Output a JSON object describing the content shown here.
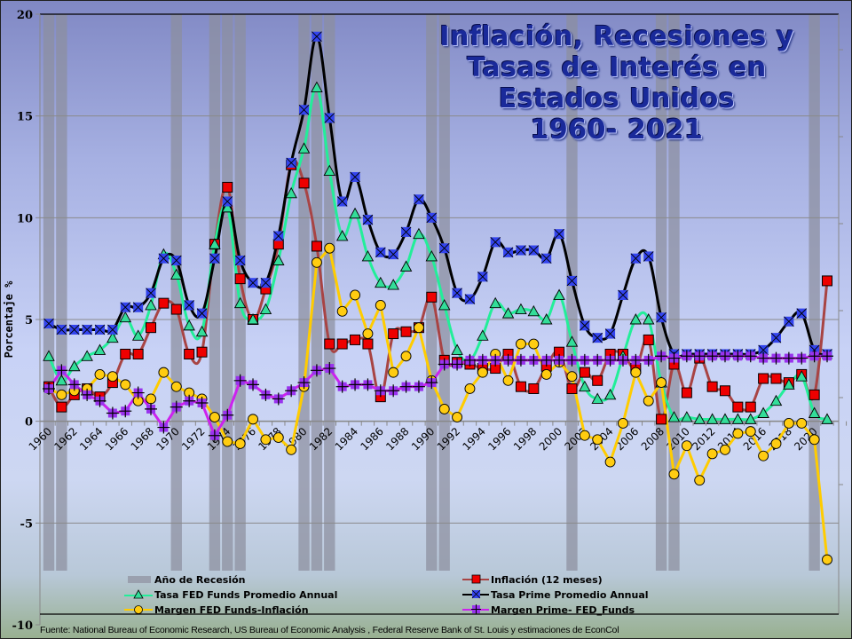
{
  "chart_data": {
    "type": "line",
    "title_lines": [
      "Inflación, Recesiones y",
      "Tasas de Interés en",
      "Estados Unidos",
      "1960- 2021"
    ],
    "xlabel": "",
    "ylabel": "Porcentaje %",
    "ylim": [
      -10,
      20
    ],
    "yticks": [
      "20",
      "15",
      "10",
      "5",
      "0",
      "-5",
      "-10"
    ],
    "ytick_values": [
      20,
      15,
      10,
      5,
      0,
      -5,
      -10
    ],
    "xlim": [
      1960,
      2021
    ],
    "xtick_labels": [
      "1960",
      "1962",
      "1964",
      "1966",
      "1968",
      "1970",
      "1972",
      "1974",
      "1976",
      "1978",
      "1980",
      "1982",
      "1984",
      "1986",
      "1988",
      "1990",
      "1992",
      "1994",
      "1996",
      "1998",
      "2000",
      "2002",
      "2004",
      "2006",
      "2008",
      "2010",
      "2012",
      "2014",
      "2016",
      "2018",
      "2020"
    ],
    "grid": true,
    "legend_placement": "bottom",
    "recession_years": [
      1960,
      1961,
      1970,
      1973,
      1974,
      1975,
      1980,
      1981,
      1982,
      1990,
      1991,
      2001,
      2008,
      2009,
      2020
    ],
    "recession_label": "Año de Recesión",
    "years_start": 1960,
    "series": [
      {
        "name": "Inflación (12 meses)",
        "key": "inflation",
        "line_color": "#a84444",
        "marker": "square",
        "marker_color": "#ee0000",
        "values": [
          1.7,
          0.7,
          1.3,
          1.6,
          1.2,
          1.9,
          3.3,
          3.3,
          4.6,
          5.8,
          5.5,
          3.3,
          3.4,
          8.7,
          11.5,
          7.0,
          5.0,
          6.5,
          8.7,
          12.6,
          11.7,
          8.6,
          3.8,
          3.8,
          4.0,
          3.8,
          1.2,
          4.3,
          4.4,
          4.6,
          6.1,
          3.0,
          2.9,
          2.8,
          2.6,
          2.6,
          3.3,
          1.7,
          1.6,
          2.7,
          3.4,
          1.6,
          2.4,
          2.0,
          3.3,
          3.3,
          2.6,
          4.0,
          0.1,
          2.8,
          1.4,
          3.1,
          1.7,
          1.5,
          0.7,
          0.7,
          2.1,
          2.1,
          1.9,
          2.3,
          1.3,
          6.9
        ]
      },
      {
        "name": "Tasa FED Funds Promedio Annual",
        "key": "fedfunds",
        "line_color": "#22ee99",
        "marker": "triangle",
        "marker_color": "#33dd99",
        "values": [
          3.2,
          2.0,
          2.7,
          3.2,
          3.5,
          4.1,
          5.1,
          4.2,
          5.7,
          8.2,
          7.2,
          4.7,
          4.4,
          8.7,
          10.5,
          5.8,
          5.0,
          5.5,
          7.9,
          11.2,
          13.4,
          16.4,
          12.3,
          9.1,
          10.2,
          8.1,
          6.8,
          6.7,
          7.6,
          9.2,
          8.1,
          5.7,
          3.5,
          3.0,
          4.2,
          5.8,
          5.3,
          5.5,
          5.4,
          5.0,
          6.2,
          3.9,
          1.7,
          1.1,
          1.3,
          3.2,
          5.0,
          5.0,
          1.9,
          0.2,
          0.2,
          0.1,
          0.1,
          0.1,
          0.1,
          0.1,
          0.4,
          1.0,
          1.8,
          2.2,
          0.4,
          0.1
        ]
      },
      {
        "name": "Tasa Prime Promedio Annual",
        "key": "prime",
        "line_color": "#000000",
        "marker": "xsquare",
        "marker_color": "#3344ee",
        "values": [
          4.8,
          4.5,
          4.5,
          4.5,
          4.5,
          4.5,
          5.6,
          5.6,
          6.3,
          8.0,
          7.9,
          5.7,
          5.3,
          8.0,
          10.8,
          7.9,
          6.8,
          6.8,
          9.1,
          12.7,
          15.3,
          18.9,
          14.9,
          10.8,
          12.0,
          9.9,
          8.3,
          8.2,
          9.3,
          10.9,
          10.0,
          8.5,
          6.3,
          6.0,
          7.1,
          8.8,
          8.3,
          8.4,
          8.4,
          8.0,
          9.2,
          6.9,
          4.7,
          4.1,
          4.3,
          6.2,
          8.0,
          8.1,
          5.1,
          3.3,
          3.3,
          3.3,
          3.3,
          3.3,
          3.3,
          3.3,
          3.5,
          4.1,
          4.9,
          5.3,
          3.5,
          3.3
        ]
      },
      {
        "name": "Margen FED Funds-Inflación",
        "key": "margin_fed",
        "line_color": "#ffcc00",
        "marker": "circle",
        "marker_color": "#ffcc11",
        "values": [
          1.6,
          1.3,
          1.5,
          1.6,
          2.3,
          2.2,
          1.8,
          1.0,
          1.1,
          2.4,
          1.7,
          1.4,
          1.1,
          0.2,
          -1.0,
          -1.1,
          0.1,
          -0.9,
          -0.8,
          -1.4,
          1.7,
          7.8,
          8.5,
          5.4,
          6.2,
          4.3,
          5.7,
          2.4,
          3.2,
          4.6,
          2.0,
          0.6,
          0.2,
          1.6,
          2.4,
          3.3,
          2.0,
          3.8,
          3.8,
          2.3,
          2.9,
          2.2,
          -0.7,
          -0.9,
          -2.0,
          -0.1,
          2.4,
          1.0,
          1.9,
          -2.6,
          -1.2,
          -2.9,
          -1.6,
          -1.4,
          -0.6,
          -0.5,
          -1.7,
          -1.1,
          -0.1,
          -0.1,
          -0.9,
          -6.8
        ]
      },
      {
        "name": "Margen Prime- FED_Funds",
        "key": "margin_prime",
        "line_color": "#cc22ee",
        "marker": "plus",
        "marker_color": "#9933ee",
        "values": [
          1.6,
          2.5,
          1.8,
          1.3,
          1.0,
          0.4,
          0.5,
          1.4,
          0.6,
          -0.3,
          0.7,
          1.0,
          0.9,
          -0.7,
          0.3,
          2.0,
          1.8,
          1.3,
          1.1,
          1.5,
          1.9,
          2.5,
          2.6,
          1.7,
          1.8,
          1.8,
          1.5,
          1.5,
          1.7,
          1.7,
          1.9,
          2.8,
          2.8,
          3.0,
          3.0,
          3.0,
          3.0,
          3.0,
          3.0,
          3.0,
          3.0,
          3.0,
          3.0,
          3.0,
          3.0,
          3.0,
          3.0,
          3.0,
          3.2,
          3.1,
          3.2,
          3.2,
          3.2,
          3.2,
          3.2,
          3.2,
          3.1,
          3.1,
          3.1,
          3.1,
          3.2,
          3.2
        ]
      }
    ]
  },
  "legend": {
    "recession": "Año de Recesión",
    "inflation": "Inflación (12 meses)",
    "fedfunds": "Tasa FED Funds Promedio Annual",
    "prime": "Tasa Prime Promedio Annual",
    "margin_fed": "Margen FED Funds-Inflación",
    "margin_prime": "Margen Prime- FED_Funds"
  },
  "source": "Fuente: National Bureau of Economic  Research, US Bureau of Economic Analysis , Federal Reserve Bank of St. Louis y estimaciones de EconCol"
}
